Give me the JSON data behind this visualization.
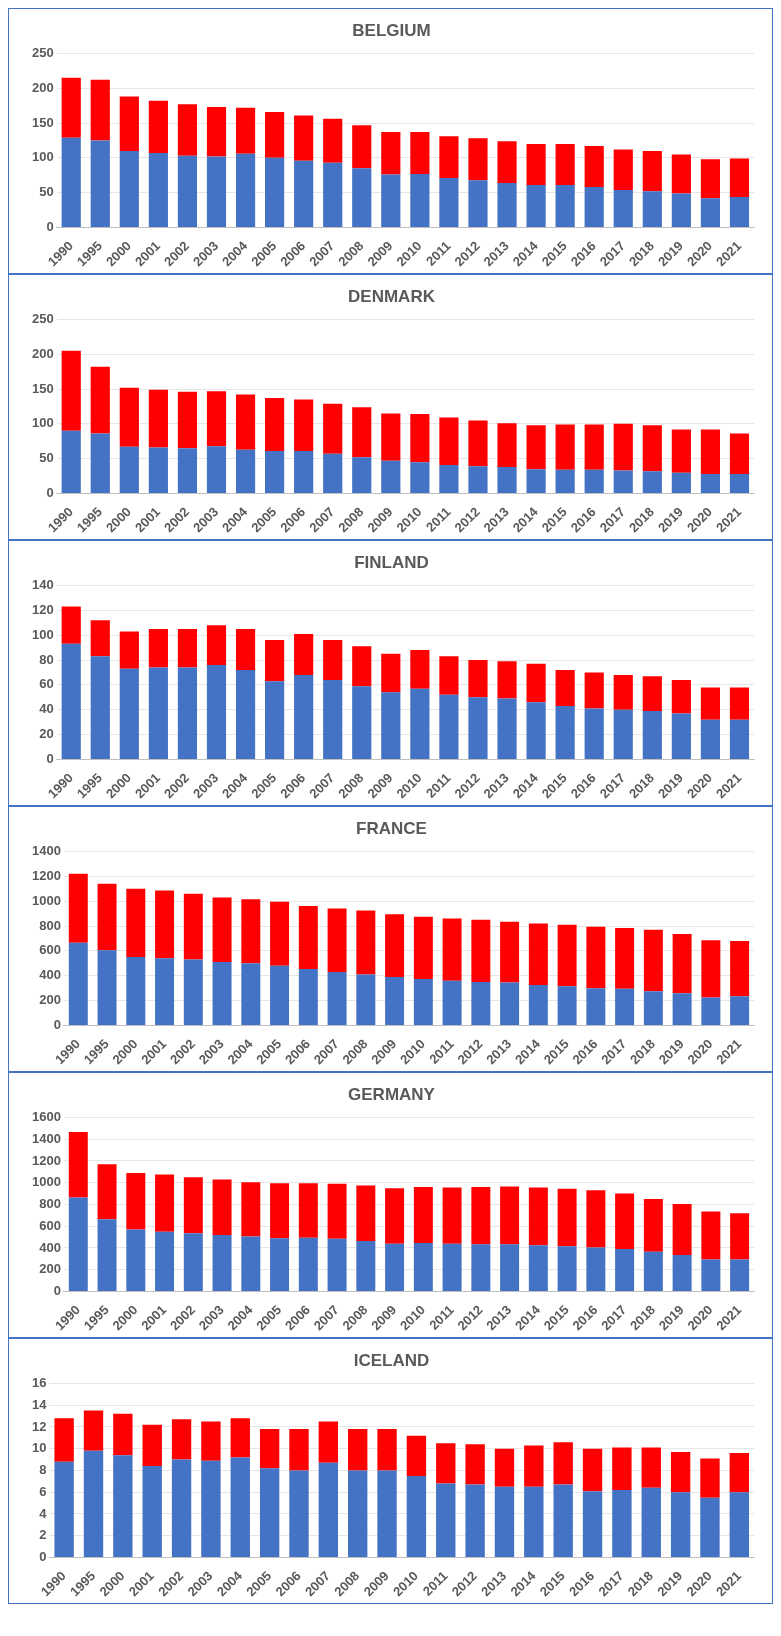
{
  "chart_data": [
    {
      "type": "bar",
      "title": "BELGIUM",
      "stacked": true,
      "grid": "y",
      "ylim": [
        0,
        250
      ],
      "yticks": [
        0,
        50,
        100,
        150,
        200,
        250
      ],
      "categories": [
        "1990",
        "1995",
        "2000",
        "2001",
        "2002",
        "2003",
        "2004",
        "2005",
        "2006",
        "2007",
        "2008",
        "2009",
        "2010",
        "2011",
        "2012",
        "2013",
        "2014",
        "2015",
        "2016",
        "2017",
        "2018",
        "2019",
        "2020",
        "2021"
      ],
      "series": [
        {
          "color": "#4472c4",
          "values": [
            129,
            125,
            110,
            107,
            103,
            102,
            106,
            100,
            96,
            93,
            85,
            76,
            77,
            71,
            68,
            64,
            61,
            61,
            58,
            54,
            52,
            49,
            42,
            44
          ]
        },
        {
          "color": "#ff0000",
          "values": [
            86,
            87,
            78,
            75,
            74,
            71,
            66,
            66,
            65,
            63,
            62,
            61,
            60,
            60,
            60,
            60,
            59,
            59,
            59,
            58,
            58,
            56,
            56,
            55
          ]
        }
      ]
    },
    {
      "type": "bar",
      "title": "DENMARK",
      "stacked": true,
      "grid": "y",
      "ylim": [
        0,
        250
      ],
      "yticks": [
        0,
        50,
        100,
        150,
        200,
        250
      ],
      "categories": [
        "1990",
        "1995",
        "2000",
        "2001",
        "2002",
        "2003",
        "2004",
        "2005",
        "2006",
        "2007",
        "2008",
        "2009",
        "2010",
        "2011",
        "2012",
        "2013",
        "2014",
        "2015",
        "2016",
        "2017",
        "2018",
        "2019",
        "2020",
        "2021"
      ],
      "series": [
        {
          "color": "#4472c4",
          "values": [
            90,
            86,
            67,
            66,
            65,
            68,
            63,
            61,
            61,
            57,
            52,
            47,
            45,
            41,
            39,
            38,
            35,
            34,
            34,
            33,
            32,
            30,
            28,
            28
          ]
        },
        {
          "color": "#ff0000",
          "values": [
            115,
            96,
            85,
            83,
            81,
            79,
            79,
            76,
            74,
            72,
            72,
            68,
            69,
            68,
            66,
            63,
            63,
            65,
            65,
            67,
            66,
            62,
            64,
            58
          ]
        }
      ]
    },
    {
      "type": "bar",
      "title": "FINLAND",
      "stacked": true,
      "grid": "y",
      "ylim": [
        0,
        140
      ],
      "yticks": [
        0,
        20,
        40,
        60,
        80,
        100,
        120,
        140
      ],
      "categories": [
        "1990",
        "1995",
        "2000",
        "2001",
        "2002",
        "2003",
        "2004",
        "2005",
        "2006",
        "2007",
        "2008",
        "2009",
        "2010",
        "2011",
        "2012",
        "2013",
        "2014",
        "2015",
        "2016",
        "2017",
        "2018",
        "2019",
        "2020",
        "2021"
      ],
      "series": [
        {
          "color": "#4472c4",
          "values": [
            93,
            83,
            73,
            74,
            74,
            76,
            72,
            63,
            68,
            64,
            59,
            54,
            57,
            52,
            50,
            49,
            46,
            43,
            41,
            40,
            39,
            37,
            32,
            32
          ]
        },
        {
          "color": "#ff0000",
          "values": [
            30,
            29,
            30,
            31,
            31,
            32,
            33,
            33,
            33,
            32,
            32,
            31,
            31,
            31,
            30,
            30,
            31,
            29,
            29,
            28,
            28,
            27,
            26,
            26
          ]
        }
      ]
    },
    {
      "type": "bar",
      "title": "FRANCE",
      "stacked": true,
      "grid": "y",
      "ylim": [
        0,
        1400
      ],
      "yticks": [
        0,
        200,
        400,
        600,
        800,
        1000,
        1200,
        1400
      ],
      "categories": [
        "1990",
        "1995",
        "2000",
        "2001",
        "2002",
        "2003",
        "2004",
        "2005",
        "2006",
        "2007",
        "2008",
        "2009",
        "2010",
        "2011",
        "2012",
        "2013",
        "2014",
        "2015",
        "2016",
        "2017",
        "2018",
        "2019",
        "2020",
        "2021"
      ],
      "series": [
        {
          "color": "#4472c4",
          "values": [
            665,
            605,
            550,
            540,
            530,
            510,
            500,
            480,
            455,
            430,
            410,
            390,
            375,
            360,
            350,
            345,
            325,
            315,
            300,
            295,
            275,
            260,
            225,
            235
          ]
        },
        {
          "color": "#ff0000",
          "values": [
            555,
            535,
            550,
            545,
            530,
            520,
            515,
            515,
            505,
            510,
            515,
            505,
            500,
            500,
            500,
            490,
            495,
            495,
            495,
            490,
            495,
            475,
            460,
            445
          ]
        }
      ]
    },
    {
      "type": "bar",
      "title": "GERMANY",
      "stacked": true,
      "grid": "y",
      "ylim": [
        0,
        1600
      ],
      "yticks": [
        0,
        200,
        400,
        600,
        800,
        1000,
        1200,
        1400,
        1600
      ],
      "categories": [
        "1990",
        "1995",
        "2000",
        "2001",
        "2002",
        "2003",
        "2004",
        "2005",
        "2006",
        "2007",
        "2008",
        "2009",
        "2010",
        "2011",
        "2012",
        "2013",
        "2014",
        "2015",
        "2016",
        "2017",
        "2018",
        "2019",
        "2020",
        "2021"
      ],
      "series": [
        {
          "color": "#4472c4",
          "values": [
            865,
            665,
            570,
            550,
            535,
            520,
            505,
            490,
            495,
            485,
            465,
            440,
            445,
            440,
            435,
            435,
            425,
            415,
            405,
            390,
            365,
            335,
            295,
            295
          ]
        },
        {
          "color": "#ff0000",
          "values": [
            600,
            505,
            520,
            525,
            515,
            510,
            500,
            505,
            500,
            505,
            510,
            510,
            515,
            515,
            525,
            530,
            530,
            530,
            525,
            510,
            485,
            470,
            440,
            425
          ]
        }
      ]
    },
    {
      "type": "bar",
      "title": "ICELAND",
      "stacked": true,
      "grid": "y",
      "ylim": [
        0,
        16
      ],
      "yticks": [
        0,
        2,
        4,
        6,
        8,
        10,
        12,
        14,
        16
      ],
      "categories": [
        "1990",
        "1995",
        "2000",
        "2001",
        "2002",
        "2003",
        "2004",
        "2005",
        "2006",
        "2007",
        "2008",
        "2009",
        "2010",
        "2011",
        "2012",
        "2013",
        "2014",
        "2015",
        "2016",
        "2017",
        "2018",
        "2019",
        "2020",
        "2021"
      ],
      "series": [
        {
          "color": "#4472c4",
          "values": [
            8.8,
            9.8,
            9.4,
            8.4,
            9.0,
            8.9,
            9.2,
            8.2,
            8.0,
            8.7,
            8.0,
            8.0,
            7.5,
            6.8,
            6.7,
            6.5,
            6.5,
            6.7,
            6.1,
            6.2,
            6.4,
            6.0,
            5.5,
            6.0
          ]
        },
        {
          "color": "#ff0000",
          "values": [
            4.0,
            3.7,
            3.8,
            3.8,
            3.7,
            3.6,
            3.6,
            3.6,
            3.8,
            3.8,
            3.8,
            3.8,
            3.7,
            3.7,
            3.7,
            3.5,
            3.8,
            3.9,
            3.9,
            3.9,
            3.7,
            3.7,
            3.6,
            3.6
          ]
        }
      ]
    }
  ]
}
